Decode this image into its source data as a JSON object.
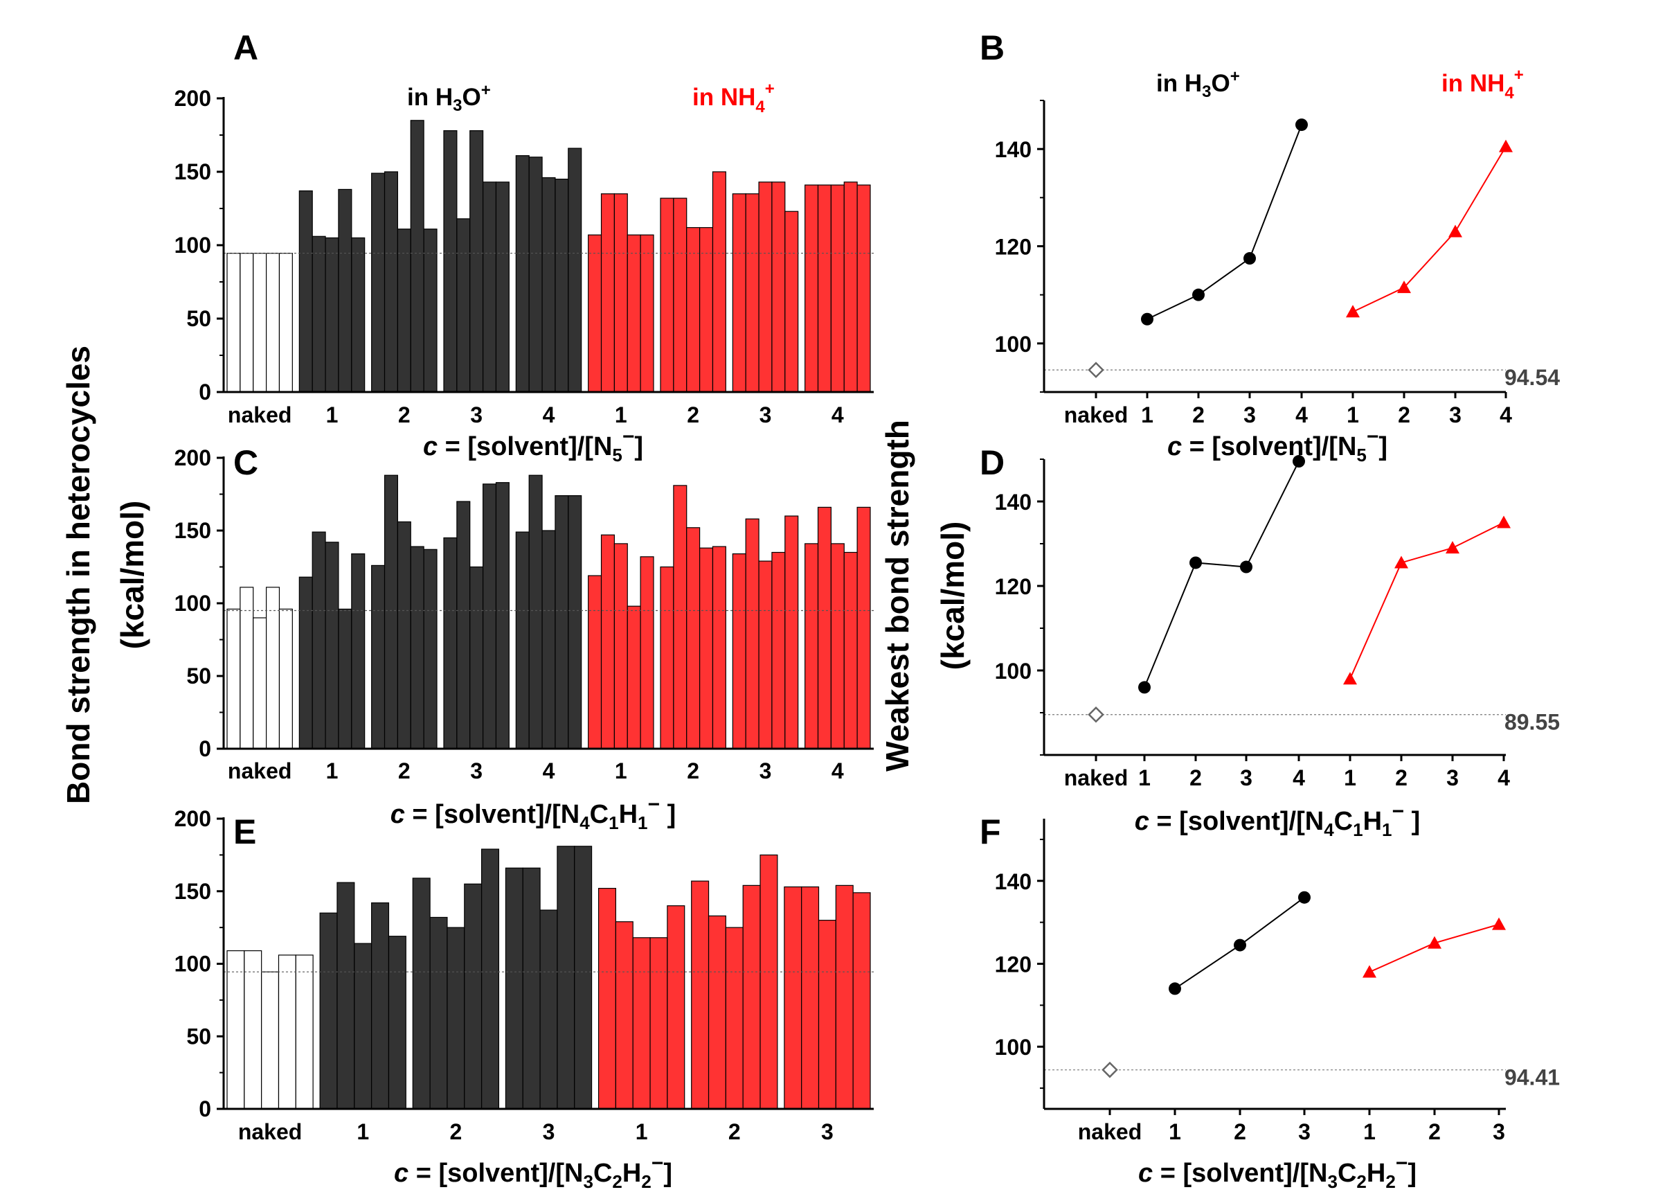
{
  "figure": {
    "ylabel_left_line1": "Bond strength in heterocycles",
    "ylabel_left_line2": "(kcal/mol)",
    "ylabel_right_line1": "Weakest bond strength",
    "ylabel_right_line2": "(kcal/mol)",
    "legend_h3o_prefix": "in H",
    "legend_h3o_sub": "3",
    "legend_h3o_suffix": "O",
    "legend_h3o_sup": "+",
    "legend_nh4_prefix": "in NH",
    "legend_nh4_sub": "4",
    "legend_nh4_sup": "+",
    "colors": {
      "naked": "#ffffff",
      "h3o": "#333333",
      "nh4": "#ff3333",
      "h3o_line": "#000000",
      "nh4_line": "#ff0000",
      "ref_marker": "#666666"
    }
  },
  "chart_data": [
    {
      "panel": "A",
      "type": "bar",
      "xlabel_italic": "c",
      "xlabel_text": " = [solvent]/[N",
      "xlabel_sub": "5",
      "xlabel_sup": "−",
      "xlabel_end": "]",
      "ylim": [
        0,
        200
      ],
      "yticks": [
        0,
        50,
        100,
        150,
        200
      ],
      "reference_line": 94.54,
      "groups": [
        {
          "label": "naked",
          "series": "naked",
          "values": [
            94.5,
            94.5,
            94.5,
            94.5,
            94.5
          ]
        },
        {
          "label": "1",
          "series": "h3o",
          "values": [
            137,
            106,
            105,
            138,
            105
          ]
        },
        {
          "label": "2",
          "series": "h3o",
          "values": [
            149,
            150,
            111,
            185,
            111
          ]
        },
        {
          "label": "3",
          "series": "h3o",
          "values": [
            178,
            118,
            178,
            143,
            143
          ]
        },
        {
          "label": "4",
          "series": "h3o",
          "values": [
            161,
            160,
            146,
            145,
            166
          ]
        },
        {
          "label": "1",
          "series": "nh4",
          "values": [
            107,
            135,
            135,
            107,
            107
          ]
        },
        {
          "label": "2",
          "series": "nh4",
          "values": [
            132,
            132,
            112,
            112,
            150
          ]
        },
        {
          "label": "3",
          "series": "nh4",
          "values": [
            135,
            135,
            143,
            143,
            123
          ]
        },
        {
          "label": "4",
          "series": "nh4",
          "values": [
            141,
            141,
            141,
            143,
            141
          ]
        }
      ]
    },
    {
      "panel": "B",
      "type": "line",
      "xlabel_italic": "c",
      "xlabel_text": " = [solvent]/[N",
      "xlabel_sub": "5",
      "xlabel_sup": "−",
      "xlabel_end": "]",
      "ylim": [
        90,
        150
      ],
      "yticks": [
        100,
        120,
        140
      ],
      "reference_value": 94.54,
      "reference_label": "94.54",
      "categories": [
        "naked",
        "1",
        "2",
        "3",
        "4",
        "1",
        "2",
        "3",
        "4"
      ],
      "series": [
        {
          "name": "naked",
          "x": [
            0
          ],
          "values": [
            94.54
          ]
        },
        {
          "name": "in H3O+",
          "x": [
            1,
            2,
            3,
            4
          ],
          "values": [
            105,
            110,
            117.5,
            145
          ]
        },
        {
          "name": "in NH4+",
          "x": [
            5,
            6,
            7,
            8
          ],
          "values": [
            106.5,
            111.5,
            123,
            140.5
          ]
        }
      ]
    },
    {
      "panel": "C",
      "type": "bar",
      "xlabel_italic": "c",
      "xlabel_text": " = [solvent]/[N",
      "xlabel_sub": "4",
      "xlabel_mid": "C",
      "xlabel_sub2": "1",
      "xlabel_mid2": "H",
      "xlabel_sub3": "1",
      "xlabel_sup": "−",
      "xlabel_end": " ]",
      "ylim": [
        0,
        200
      ],
      "yticks": [
        0,
        50,
        100,
        150,
        200
      ],
      "reference_line": 95,
      "groups": [
        {
          "label": "naked",
          "series": "naked",
          "values": [
            96,
            111,
            90,
            111,
            96
          ]
        },
        {
          "label": "1",
          "series": "h3o",
          "values": [
            118,
            149,
            142,
            96,
            134
          ]
        },
        {
          "label": "2",
          "series": "h3o",
          "values": [
            126,
            188,
            156,
            139,
            137
          ]
        },
        {
          "label": "3",
          "series": "h3o",
          "values": [
            145,
            170,
            125,
            182,
            183
          ]
        },
        {
          "label": "4",
          "series": "h3o",
          "values": [
            149,
            188,
            150,
            174,
            174
          ]
        },
        {
          "label": "1",
          "series": "nh4",
          "values": [
            119,
            147,
            141,
            98,
            132
          ]
        },
        {
          "label": "2",
          "series": "nh4",
          "values": [
            125,
            181,
            152,
            138,
            139
          ]
        },
        {
          "label": "3",
          "series": "nh4",
          "values": [
            134,
            158,
            129,
            135,
            160
          ]
        },
        {
          "label": "4",
          "series": "nh4",
          "values": [
            141,
            166,
            141,
            135,
            166
          ]
        }
      ]
    },
    {
      "panel": "D",
      "type": "line",
      "xlabel_italic": "c",
      "xlabel_text": " = [solvent]/[N",
      "xlabel_sub": "4",
      "xlabel_mid": "C",
      "xlabel_sub2": "1",
      "xlabel_mid2": "H",
      "xlabel_sub3": "1",
      "xlabel_sup": "−",
      "xlabel_end": " ]",
      "ylim": [
        80,
        150
      ],
      "yticks": [
        100,
        120,
        140
      ],
      "reference_value": 89.55,
      "reference_label": "89.55",
      "categories": [
        "naked",
        "1",
        "2",
        "3",
        "4",
        "1",
        "2",
        "3",
        "4"
      ],
      "series": [
        {
          "name": "naked",
          "x": [
            0
          ],
          "values": [
            89.55
          ]
        },
        {
          "name": "in H3O+",
          "x": [
            1,
            2,
            3,
            4
          ],
          "values": [
            96,
            125.5,
            124.5,
            149.5
          ]
        },
        {
          "name": "in NH4+",
          "x": [
            5,
            6,
            7,
            8
          ],
          "values": [
            98,
            125.5,
            129,
            135
          ]
        }
      ]
    },
    {
      "panel": "E",
      "type": "bar",
      "xlabel_italic": "c",
      "xlabel_text": " = [solvent]/[N",
      "xlabel_sub": "3",
      "xlabel_mid": "C",
      "xlabel_sub2": "2",
      "xlabel_mid2": "H",
      "xlabel_sub3": "2",
      "xlabel_sup": "−",
      "xlabel_end": "]",
      "ylim": [
        0,
        200
      ],
      "yticks": [
        0,
        50,
        100,
        150,
        200
      ],
      "reference_line": 94.41,
      "groups": [
        {
          "label": "naked",
          "series": "naked",
          "values": [
            109,
            109,
            94.4,
            106,
            106
          ]
        },
        {
          "label": "1",
          "series": "h3o",
          "values": [
            135,
            156,
            114,
            142,
            119
          ]
        },
        {
          "label": "2",
          "series": "h3o",
          "values": [
            159,
            132,
            125,
            155,
            179
          ]
        },
        {
          "label": "3",
          "series": "h3o",
          "values": [
            166,
            166,
            137,
            181,
            181
          ]
        },
        {
          "label": "1",
          "series": "nh4",
          "values": [
            152,
            129,
            118,
            118,
            140
          ]
        },
        {
          "label": "2",
          "series": "nh4",
          "values": [
            157,
            133,
            125,
            154,
            175
          ]
        },
        {
          "label": "3",
          "series": "nh4",
          "values": [
            153,
            153,
            130,
            154,
            149
          ]
        }
      ]
    },
    {
      "panel": "F",
      "type": "line",
      "xlabel_italic": "c",
      "xlabel_text": " = [solvent]/[N",
      "xlabel_sub": "3",
      "xlabel_mid": "C",
      "xlabel_sub2": "2",
      "xlabel_mid2": "H",
      "xlabel_sub3": "2",
      "xlabel_sup": "−",
      "xlabel_end": "]",
      "ylim": [
        85,
        155
      ],
      "yticks": [
        100,
        120,
        140
      ],
      "reference_value": 94.41,
      "reference_label": "94.41",
      "categories": [
        "naked",
        "1",
        "2",
        "3",
        "1",
        "2",
        "3"
      ],
      "series": [
        {
          "name": "naked",
          "x": [
            0
          ],
          "values": [
            94.41
          ]
        },
        {
          "name": "in H3O+",
          "x": [
            1,
            2,
            3
          ],
          "values": [
            114,
            124.5,
            136
          ]
        },
        {
          "name": "in NH4+",
          "x": [
            4,
            5,
            6
          ],
          "values": [
            118,
            125,
            129.5
          ]
        }
      ]
    }
  ]
}
